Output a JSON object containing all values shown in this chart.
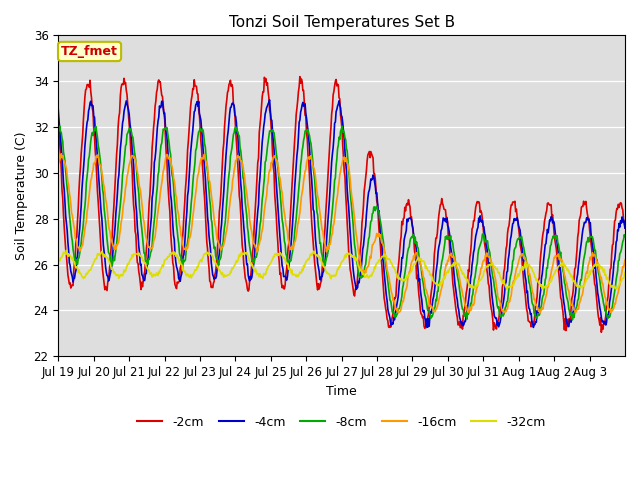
{
  "title": "Tonzi Soil Temperatures Set B",
  "xlabel": "Time",
  "ylabel": "Soil Temperature (C)",
  "annotation_text": "TZ_fmet",
  "annotation_bg": "#ffffcc",
  "annotation_border": "#bbbb00",
  "annotation_fg": "#cc0000",
  "ylim": [
    22,
    36
  ],
  "yticks": [
    22,
    24,
    26,
    28,
    30,
    32,
    34,
    36
  ],
  "series": [
    {
      "label": "-2cm",
      "color": "#dd0000",
      "lw": 1.2
    },
    {
      "label": "-4cm",
      "color": "#0000cc",
      "lw": 1.2
    },
    {
      "label": "-8cm",
      "color": "#00aa00",
      "lw": 1.2
    },
    {
      "label": "-16cm",
      "color": "#ff9900",
      "lw": 1.2
    },
    {
      "label": "-32cm",
      "color": "#dddd00",
      "lw": 1.2
    }
  ],
  "xtick_labels": [
    "Jul 19",
    "Jul 20",
    "Jul 21",
    "Jul 22",
    "Jul 23",
    "Jul 24",
    "Jul 25",
    "Jul 26",
    "Jul 27",
    "Jul 28",
    "Jul 29",
    "Jul 30",
    "Jul 31",
    "Aug 1",
    "Aug 2",
    "Aug 3"
  ],
  "n_days": 16,
  "points_per_day": 48
}
